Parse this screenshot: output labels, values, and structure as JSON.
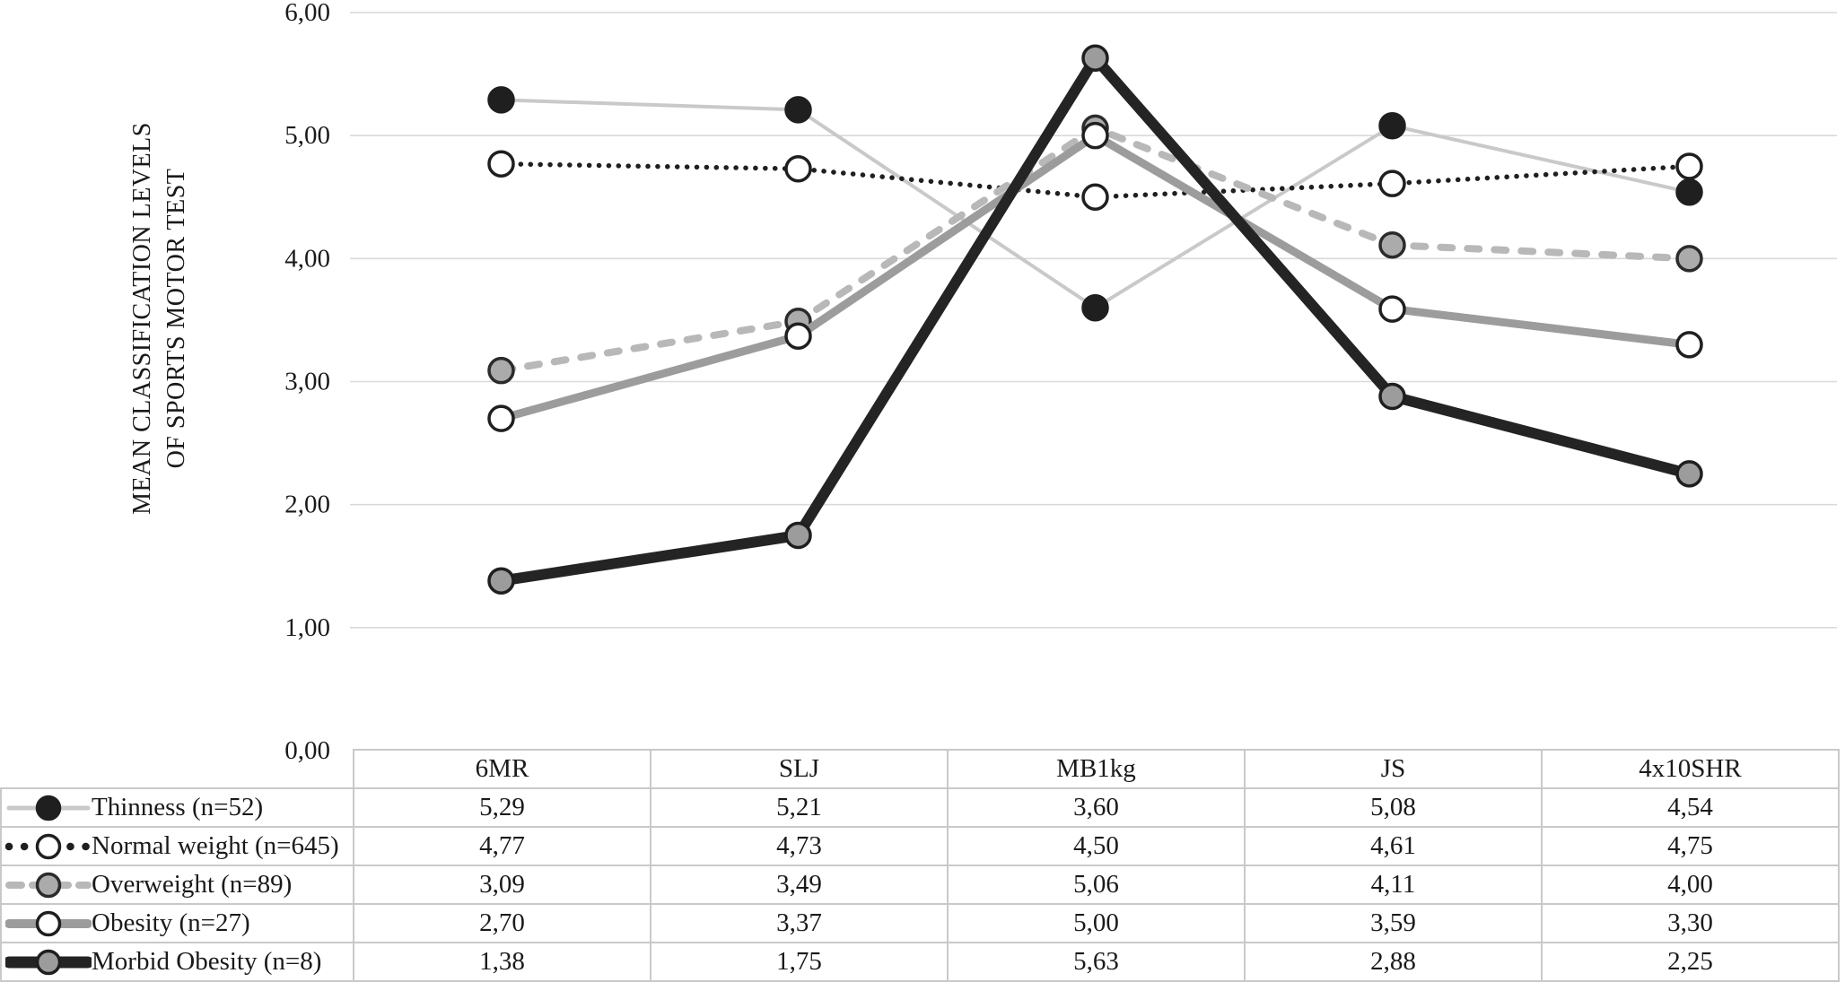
{
  "figure": {
    "y_axis_title_line1": "MEAN CLASSIFICATION LEVELS",
    "y_axis_title_line2": "OF SPORTS MOTOR TEST"
  },
  "chart_data": {
    "type": "line",
    "title": "",
    "xlabel": "",
    "ylabel": "MEAN CLASSIFICATION LEVELS OF SPORTS MOTOR TEST",
    "categories": [
      "6MR",
      "SLJ",
      "MB1kg",
      "JS",
      "4x10SHR"
    ],
    "ylim": [
      0,
      6
    ],
    "ytick_interval": 1,
    "ytick_labels": [
      "0,00",
      "1,00",
      "2,00",
      "3,00",
      "4,00",
      "5,00",
      "6,00"
    ],
    "decimal_separator": ",",
    "grid": true,
    "legend_position": "left column of data table below plot",
    "series": [
      {
        "name": "Thinness (n=52)",
        "values": [
          5.29,
          5.21,
          3.6,
          5.08,
          4.54
        ],
        "line": {
          "color": "#c9c9c9",
          "width": 4,
          "dash": "solid"
        },
        "marker": {
          "fill": "#1f1f1f",
          "stroke": "#1f1f1f"
        }
      },
      {
        "name": "Normal weight (n=645)",
        "values": [
          4.77,
          4.73,
          4.5,
          4.61,
          4.75
        ],
        "line": {
          "color": "#1f1f1f",
          "width": 5.5,
          "dash": "dotted"
        },
        "marker": {
          "fill": "#ffffff",
          "stroke": "#1f1f1f"
        }
      },
      {
        "name": "Overweight (n=89)",
        "values": [
          3.09,
          3.49,
          5.06,
          4.11,
          4.0
        ],
        "line": {
          "color": "#b8b8b8",
          "width": 8,
          "dash": "dashed"
        },
        "marker": {
          "fill": "#ababab",
          "stroke": "#2b2b2b"
        }
      },
      {
        "name": "Obesity (n=27)",
        "values": [
          2.7,
          3.37,
          5.0,
          3.59,
          3.3
        ],
        "line": {
          "color": "#9c9c9c",
          "width": 9,
          "dash": "solid"
        },
        "marker": {
          "fill": "#ffffff",
          "stroke": "#1f1f1f"
        }
      },
      {
        "name": "Morbid Obesity (n=8)",
        "values": [
          1.38,
          1.75,
          5.63,
          2.88,
          2.25
        ],
        "line": {
          "color": "#242424",
          "width": 12,
          "dash": "solid"
        },
        "marker": {
          "fill": "#9c9c9c",
          "stroke": "#1f1f1f"
        }
      }
    ],
    "style": {
      "grid_color": "#d9d9d9",
      "table_border_color": "#c9c9c9",
      "text_color": "#1a1a1a"
    }
  }
}
